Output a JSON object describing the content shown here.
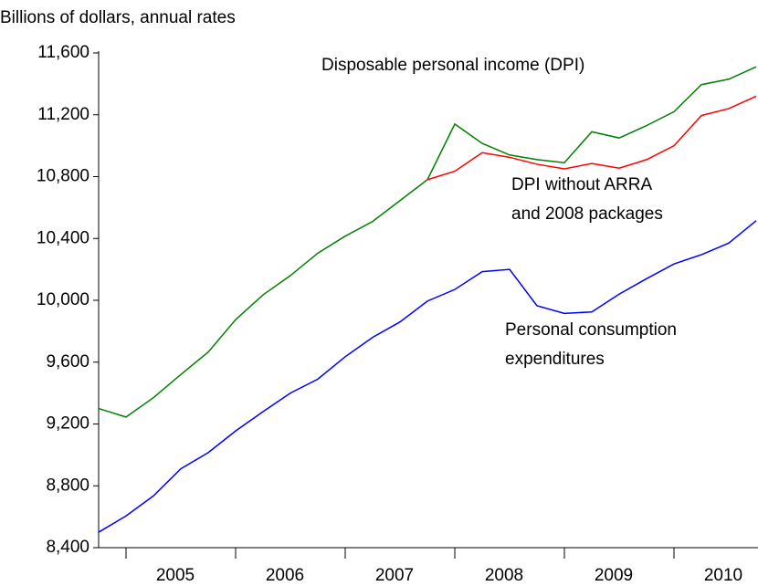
{
  "chart_data": {
    "type": "line",
    "subtitle": "Billions of dollars, annual rates",
    "x": [
      2004.75,
      2005.0,
      2005.25,
      2005.5,
      2005.75,
      2006.0,
      2006.25,
      2006.5,
      2006.75,
      2007.0,
      2007.25,
      2007.5,
      2007.75,
      2008.0,
      2008.25,
      2008.5,
      2008.75,
      2009.0,
      2009.25,
      2009.5,
      2009.75,
      2010.0,
      2010.25,
      2010.5,
      2010.75
    ],
    "xlim": [
      2004.75,
      2010.75
    ],
    "xticks": [
      {
        "value": 2005,
        "label": "2005"
      },
      {
        "value": 2006,
        "label": "2006"
      },
      {
        "value": 2007,
        "label": "2007"
      },
      {
        "value": 2008,
        "label": "2008"
      },
      {
        "value": 2009,
        "label": "2009"
      },
      {
        "value": 2010,
        "label": "2010"
      }
    ],
    "ylim": [
      8400,
      11600
    ],
    "yticks": [
      {
        "value": 8400,
        "label": "8,400"
      },
      {
        "value": 8800,
        "label": "8,800"
      },
      {
        "value": 9200,
        "label": "9,200"
      },
      {
        "value": 9600,
        "label": "9,600"
      },
      {
        "value": 10000,
        "label": "10,000"
      },
      {
        "value": 10400,
        "label": "10,400"
      },
      {
        "value": 10800,
        "label": "10,800"
      },
      {
        "value": 11200,
        "label": "11,200"
      },
      {
        "value": 11600,
        "label": "11,600"
      }
    ],
    "series": [
      {
        "color": "#008000",
        "values": [
          9300,
          9245,
          9370,
          9520,
          9665,
          9875,
          10035,
          10160,
          10305,
          10415,
          10510,
          10645,
          10780,
          11140,
          11015,
          10940,
          10910,
          10890,
          11090,
          11050,
          11130,
          11220,
          11395,
          11430,
          11510
        ]
      },
      {
        "color": "#ff0000",
        "values": [
          null,
          null,
          null,
          null,
          null,
          null,
          null,
          null,
          null,
          null,
          null,
          null,
          10780,
          10835,
          10955,
          10925,
          10880,
          10850,
          10885,
          10855,
          10910,
          11000,
          11195,
          11240,
          11320
        ]
      },
      {
        "color": "#0000ff",
        "values": [
          8500,
          8605,
          8735,
          8910,
          9015,
          9155,
          9280,
          9400,
          9490,
          9635,
          9760,
          9860,
          9995,
          10070,
          10185,
          10200,
          9965,
          9915,
          9925,
          10040,
          10140,
          10235,
          10295,
          10370,
          10515
        ]
      }
    ],
    "annotations": [
      [
        "Disposable personal income (DPI)"
      ],
      [
        "DPI without ARRA",
        "and 2008 packages"
      ],
      [
        "Personal consumption",
        "expenditures"
      ]
    ]
  }
}
